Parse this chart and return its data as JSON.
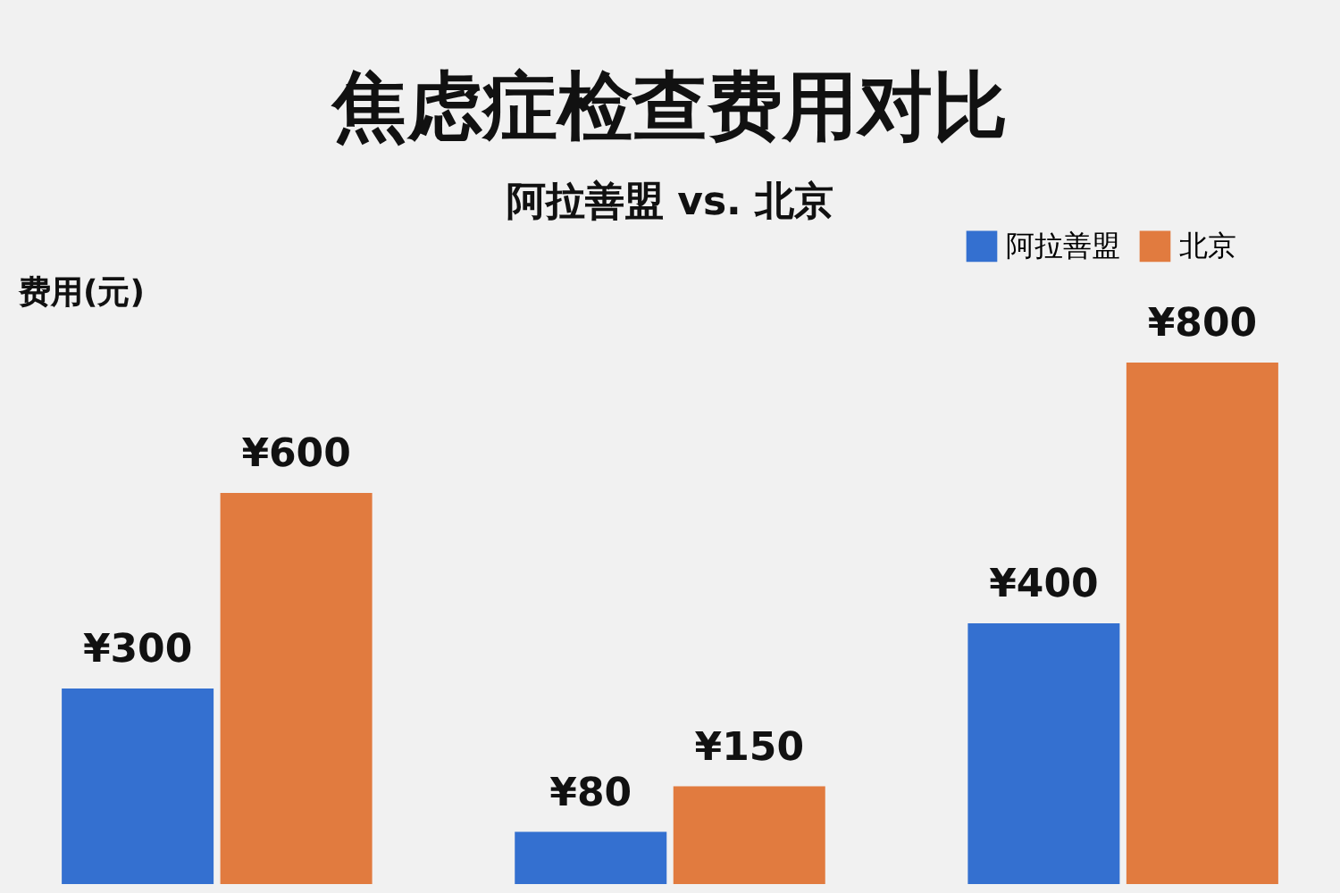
{
  "chart_data": {
    "type": "bar",
    "title": "焦虑症检查费用对比",
    "subtitle": "阿拉善盟 vs. 北京",
    "ylabel": "费用(元)",
    "categories": [
      null,
      null,
      null
    ],
    "series": [
      {
        "name": "阿拉善盟",
        "color": "#3470d0",
        "values": [
          300,
          80,
          400
        ],
        "value_labels": [
          "¥300",
          "¥80",
          "¥400"
        ]
      },
      {
        "name": "北京",
        "color": "#e17b3f",
        "values": [
          600,
          150,
          800
        ],
        "value_labels": [
          "¥600",
          "¥150",
          "¥800"
        ]
      }
    ],
    "legend": "top right",
    "grid": false,
    "tick_labels": false
  }
}
